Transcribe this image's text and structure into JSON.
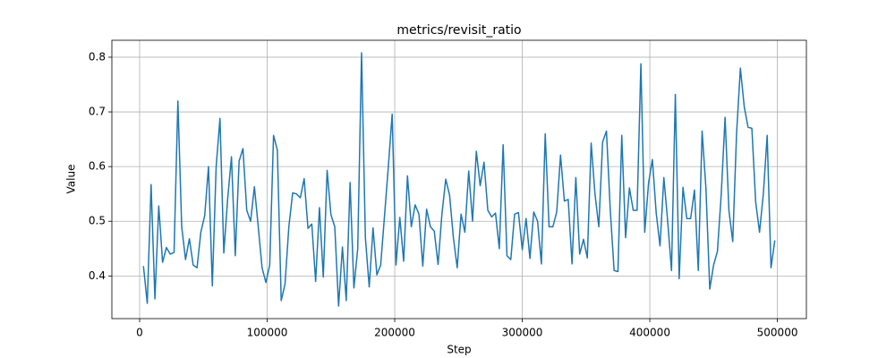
{
  "chart_data": {
    "type": "line",
    "title": "metrics/revisit_ratio",
    "x_label": "Step",
    "y_label": "Value",
    "x": [
      3000,
      6000,
      9000,
      12000,
      15000,
      18000,
      21000,
      24000,
      27000,
      30000,
      33000,
      36000,
      39000,
      42000,
      45000,
      48000,
      51000,
      54000,
      57000,
      60000,
      63000,
      66000,
      69000,
      72000,
      75000,
      78000,
      81000,
      84000,
      87000,
      90000,
      93000,
      96000,
      99000,
      102000,
      105000,
      108000,
      111000,
      114000,
      117000,
      120000,
      123000,
      126000,
      129000,
      132000,
      135000,
      138000,
      141000,
      144000,
      147000,
      150000,
      153000,
      156000,
      159000,
      162000,
      165000,
      168000,
      171000,
      174000,
      177000,
      180000,
      183000,
      186000,
      189000,
      192000,
      195000,
      198000,
      201000,
      204000,
      207000,
      210000,
      213000,
      216000,
      219000,
      222000,
      225000,
      228000,
      231000,
      234000,
      237000,
      240000,
      243000,
      246000,
      249000,
      252000,
      255000,
      258000,
      261000,
      264000,
      267000,
      270000,
      273000,
      276000,
      279000,
      282000,
      285000,
      288000,
      291000,
      294000,
      297000,
      300000,
      303000,
      306000,
      309000,
      312000,
      315000,
      318000,
      321000,
      324000,
      327000,
      330000,
      333000,
      336000,
      339000,
      342000,
      345000,
      348000,
      351000,
      354000,
      357000,
      360000,
      363000,
      366000,
      369000,
      372000,
      375000,
      378000,
      381000,
      384000,
      387000,
      390000,
      393000,
      396000,
      399000,
      402000,
      405000,
      408000,
      411000,
      414000,
      417000,
      420000,
      423000,
      426000,
      429000,
      432000,
      435000,
      438000,
      441000,
      444000,
      447000,
      450000,
      453000,
      456000,
      459000,
      462000,
      465000,
      468000,
      471000,
      474000,
      477000,
      480000,
      483000,
      486000,
      489000,
      492000,
      495000,
      498000
    ],
    "values": [
      0.418,
      0.35,
      0.567,
      0.358,
      0.528,
      0.425,
      0.452,
      0.44,
      0.443,
      0.72,
      0.49,
      0.43,
      0.468,
      0.42,
      0.415,
      0.48,
      0.51,
      0.6,
      0.382,
      0.6,
      0.688,
      0.442,
      0.54,
      0.618,
      0.437,
      0.61,
      0.633,
      0.52,
      0.5,
      0.563,
      0.49,
      0.415,
      0.388,
      0.42,
      0.657,
      0.63,
      0.355,
      0.385,
      0.49,
      0.552,
      0.55,
      0.543,
      0.578,
      0.487,
      0.495,
      0.39,
      0.525,
      0.398,
      0.593,
      0.512,
      0.49,
      0.345,
      0.453,
      0.355,
      0.571,
      0.378,
      0.45,
      0.808,
      0.47,
      0.38,
      0.488,
      0.402,
      0.42,
      0.51,
      0.6,
      0.696,
      0.42,
      0.507,
      0.427,
      0.583,
      0.49,
      0.53,
      0.513,
      0.418,
      0.522,
      0.49,
      0.482,
      0.421,
      0.513,
      0.577,
      0.548,
      0.47,
      0.415,
      0.513,
      0.48,
      0.592,
      0.5,
      0.628,
      0.565,
      0.608,
      0.52,
      0.508,
      0.515,
      0.45,
      0.64,
      0.437,
      0.43,
      0.513,
      0.516,
      0.448,
      0.505,
      0.432,
      0.517,
      0.5,
      0.422,
      0.66,
      0.49,
      0.49,
      0.517,
      0.621,
      0.537,
      0.54,
      0.422,
      0.58,
      0.44,
      0.467,
      0.433,
      0.643,
      0.55,
      0.49,
      0.645,
      0.665,
      0.52,
      0.41,
      0.408,
      0.657,
      0.47,
      0.561,
      0.52,
      0.52,
      0.788,
      0.48,
      0.57,
      0.613,
      0.515,
      0.455,
      0.58,
      0.5,
      0.41,
      0.732,
      0.395,
      0.562,
      0.505,
      0.505,
      0.557,
      0.41,
      0.665,
      0.56,
      0.376,
      0.42,
      0.445,
      0.55,
      0.69,
      0.52,
      0.463,
      0.66,
      0.78,
      0.71,
      0.672,
      0.67,
      0.535,
      0.48,
      0.55,
      0.657,
      0.415,
      0.465
    ],
    "color": "#1f77b4",
    "xlim": [
      -21750,
      522750
    ],
    "xticks": [
      0,
      100000,
      200000,
      300000,
      400000,
      500000
    ],
    "ylim": [
      0.322,
      0.831
    ],
    "yticks": [
      0.4,
      0.5,
      0.6,
      0.7,
      0.8
    ],
    "grid": true
  }
}
